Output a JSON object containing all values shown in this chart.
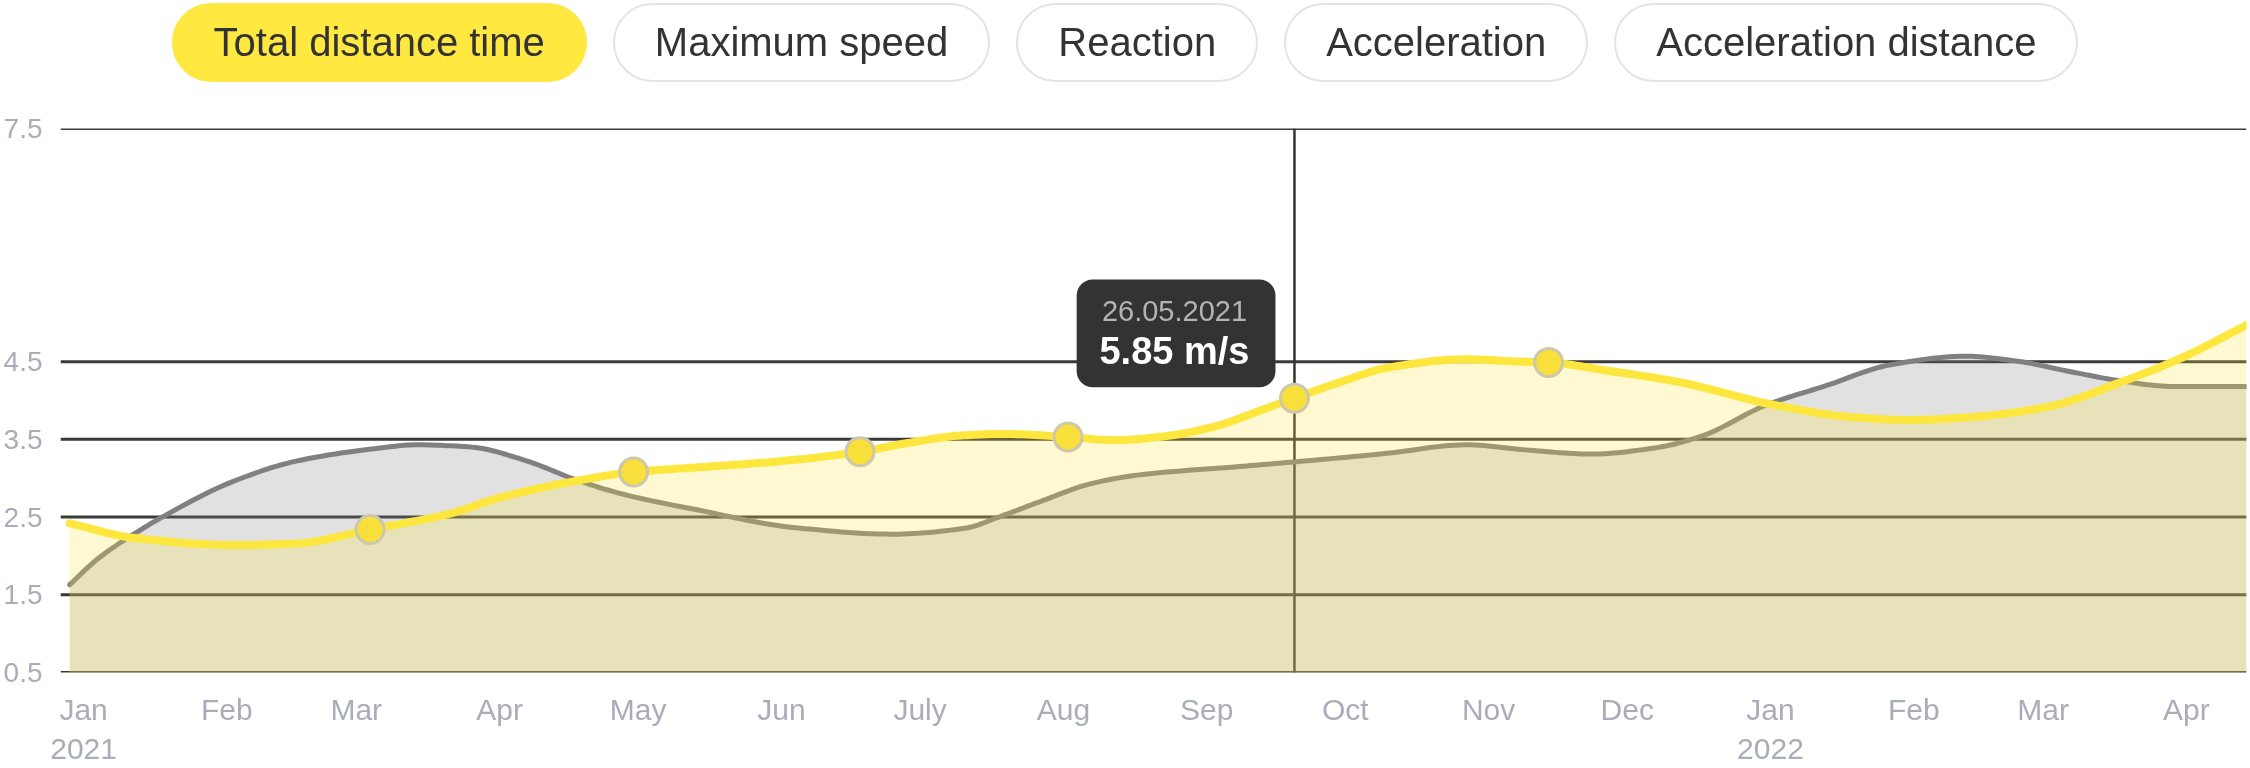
{
  "chart_data": {
    "type": "area",
    "title": "Total distance time",
    "annotations": [
      "Maximum speed",
      "Reaction",
      "Acceleration",
      "Acceleration distance",
      {
        "text": "26.05.2021\n5.85 m/s",
        "x": "2021-09-20",
        "y": 4.03
      }
    ],
    "xlim": [
      "2020-12-27",
      "2022-04-14"
    ],
    "xticks": [
      {
        "value": "2021-01-01",
        "label": "Jan\n2021"
      },
      {
        "value": "2021-02-01",
        "label": "Feb"
      },
      {
        "value": "2021-03-01",
        "label": "Mar"
      },
      {
        "value": "2021-04-01",
        "label": "Apr"
      },
      {
        "value": "2021-05-01",
        "label": "May"
      },
      {
        "value": "2021-06-01",
        "label": "Jun"
      },
      {
        "value": "2021-07-01",
        "label": "July"
      },
      {
        "value": "2021-08-01",
        "label": "Aug"
      },
      {
        "value": "2021-09-01",
        "label": "Sep"
      },
      {
        "value": "2021-10-01",
        "label": "Oct"
      },
      {
        "value": "2021-11-01",
        "label": "Nov"
      },
      {
        "value": "2021-12-01",
        "label": "Dec"
      },
      {
        "value": "2022-01-01",
        "label": "Jan\n2022"
      },
      {
        "value": "2022-02-01",
        "label": "Feb"
      },
      {
        "value": "2022-03-01",
        "label": "Mar"
      },
      {
        "value": "2022-04-01",
        "label": "Apr"
      }
    ],
    "ylim": [
      0.5,
      7.5
    ],
    "yticks": [
      0.5,
      1.5,
      2.5,
      3.5,
      4.5,
      7.5
    ],
    "grid": "y",
    "ref_lines": [
      {
        "axis": "x",
        "value": "2021-09-20",
        "color": "#333333"
      }
    ],
    "series": [
      {
        "color": "#808080",
        "x": [
          "2020-12-29",
          "2021-01-04",
          "2021-01-14",
          "2021-01-18",
          "2021-02-02",
          "2021-02-16",
          "2021-03-05",
          "2021-03-14",
          "2021-03-26",
          "2021-04-06",
          "2021-04-18",
          "2021-04-28",
          "2021-05-14",
          "2021-06-03",
          "2021-06-25",
          "2021-07-11",
          "2021-07-18",
          "2021-07-27",
          "2021-08-07",
          "2021-08-17",
          "2021-09-08",
          "2021-09-20",
          "2021-10-10",
          "2021-10-27",
          "2021-11-10",
          "2021-11-23",
          "2021-12-07",
          "2021-12-17",
          "2021-12-31",
          "2022-01-13",
          "2022-01-27",
          "2022-02-12",
          "2022-02-23",
          "2022-03-07",
          "2022-03-18",
          "2022-03-29",
          "2022-04-14"
        ],
        "values": [
          1.63,
          1.96,
          2.36,
          2.5,
          2.95,
          3.22,
          3.38,
          3.43,
          3.4,
          3.24,
          2.97,
          2.79,
          2.59,
          2.37,
          2.28,
          2.36,
          2.5,
          2.7,
          2.93,
          3.04,
          3.15,
          3.21,
          3.32,
          3.43,
          3.36,
          3.31,
          3.39,
          3.54,
          3.94,
          4.19,
          4.46,
          4.57,
          4.51,
          4.37,
          4.25,
          4.18,
          4.18
        ]
      },
      {
        "color": "#fde73e",
        "x": [
          "2020-12-29",
          "2021-01-12",
          "2021-02-03",
          "2021-02-16",
          "2021-03-04",
          "2021-03-21",
          "2021-04-01",
          "2021-04-18",
          "2021-04-30",
          "2021-05-14",
          "2021-06-01",
          "2021-06-18",
          "2021-06-28",
          "2021-07-10",
          "2021-07-19",
          "2021-08-02",
          "2021-08-12",
          "2021-08-23",
          "2021-09-03",
          "2021-09-13",
          "2021-09-20",
          "2021-09-30",
          "2021-10-10",
          "2021-10-27",
          "2021-11-08",
          "2021-11-14",
          "2021-11-26",
          "2021-12-12",
          "2022-01-02",
          "2022-01-18",
          "2022-01-31",
          "2022-02-14",
          "2022-03-02",
          "2022-03-18",
          "2022-03-31",
          "2022-04-14"
        ],
        "values": [
          2.42,
          2.23,
          2.14,
          2.16,
          2.34,
          2.54,
          2.75,
          2.97,
          3.08,
          3.14,
          3.22,
          3.34,
          3.45,
          3.55,
          3.57,
          3.53,
          3.49,
          3.54,
          3.67,
          3.88,
          4.03,
          4.24,
          4.42,
          4.53,
          4.5,
          4.49,
          4.39,
          4.24,
          3.94,
          3.79,
          3.75,
          3.79,
          3.92,
          4.24,
          4.55,
          4.97
        ]
      },
      {
        "type": "scatter",
        "color": "#f9df3a",
        "x": [
          "2021-03-04",
          "2021-04-30",
          "2021-06-18",
          "2021-08-02",
          "2021-09-20",
          "2021-11-14"
        ],
        "values": [
          2.34,
          3.08,
          3.34,
          3.53,
          4.03,
          4.49
        ]
      }
    ]
  }
}
